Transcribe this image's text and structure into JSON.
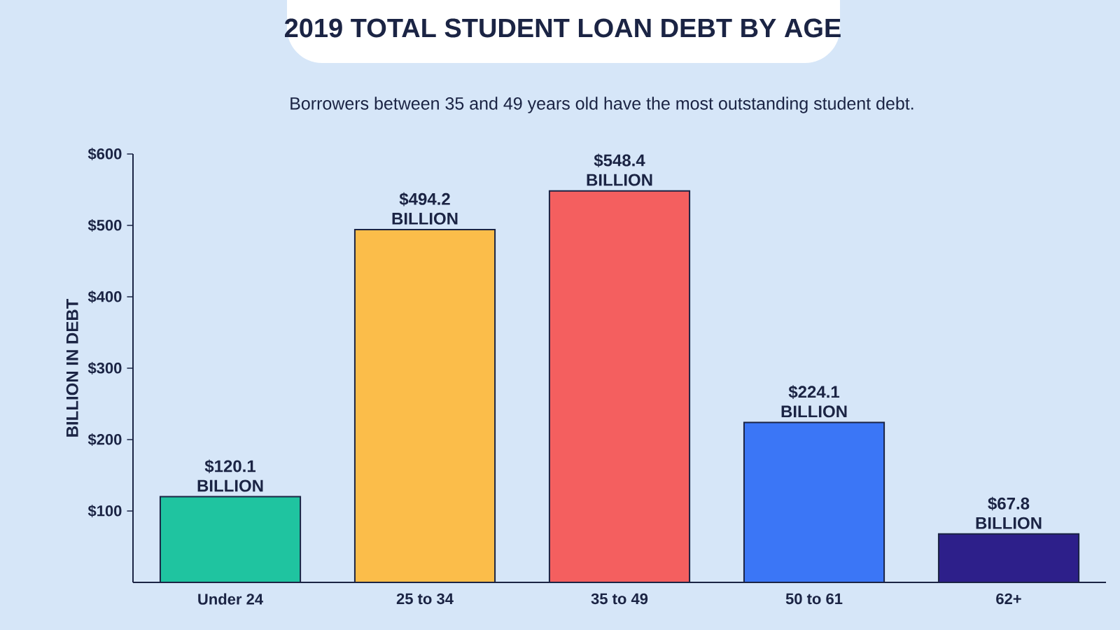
{
  "chart_data": {
    "type": "bar",
    "title": "2019 TOTAL STUDENT LOAN DEBT BY AGE",
    "subtitle": "Borrowers between 35 and 49 years old have the most outstanding student debt.",
    "ylabel": "BILLION IN DEBT",
    "categories": [
      "Under 24",
      "25 to 34",
      "35 to 49",
      "50 to 61",
      "62+"
    ],
    "values": [
      120.1,
      494.2,
      548.4,
      224.1,
      67.8
    ],
    "value_labels": [
      "$120.1 BILLION",
      "$494.2 BILLION",
      "$548.4 BILLION",
      "$224.1 BILLION",
      "$67.8 BILLION"
    ],
    "colors": [
      "#1fc4a0",
      "#fbbd4a",
      "#f45f5f",
      "#3b76f6",
      "#2d1f8a"
    ],
    "ylim": [
      0,
      600
    ],
    "yticks": [
      {
        "value": 100,
        "label": "$100"
      },
      {
        "value": 200,
        "label": "$200"
      },
      {
        "value": 300,
        "label": "$300"
      },
      {
        "value": 400,
        "label": "$400"
      },
      {
        "value": 500,
        "label": "$500"
      },
      {
        "value": 600,
        "label": "$600"
      }
    ]
  }
}
